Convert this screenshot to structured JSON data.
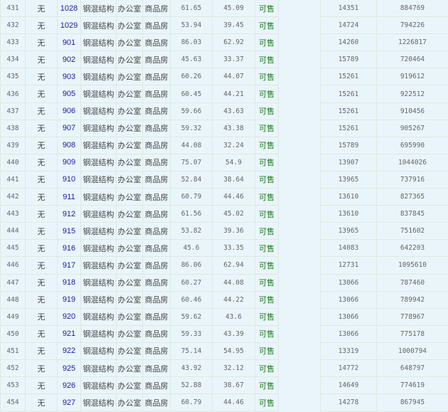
{
  "table": {
    "rows": [
      {
        "no": "431",
        "layer": "无",
        "room": "1028",
        "structure": "钢混结构",
        "usage": "办公室",
        "type": "商品房",
        "build_area": "61.65",
        "inner_area": "45.09",
        "status": "可售",
        "unit_price": "14351",
        "total_price": "884769"
      },
      {
        "no": "432",
        "layer": "无",
        "room": "1029",
        "structure": "钢混结构",
        "usage": "办公室",
        "type": "商品房",
        "build_area": "53.94",
        "inner_area": "39.45",
        "status": "可售",
        "unit_price": "14724",
        "total_price": "794226"
      },
      {
        "no": "433",
        "layer": "无",
        "room": "901",
        "structure": "钢混结构",
        "usage": "办公室",
        "type": "商品房",
        "build_area": "86.03",
        "inner_area": "62.92",
        "status": "可售",
        "unit_price": "14260",
        "total_price": "1226817"
      },
      {
        "no": "434",
        "layer": "无",
        "room": "902",
        "structure": "钢混结构",
        "usage": "办公室",
        "type": "商品房",
        "build_area": "45.63",
        "inner_area": "33.37",
        "status": "可售",
        "unit_price": "15789",
        "total_price": "720464"
      },
      {
        "no": "435",
        "layer": "无",
        "room": "903",
        "structure": "钢混结构",
        "usage": "办公室",
        "type": "商品房",
        "build_area": "60.26",
        "inner_area": "44.07",
        "status": "可售",
        "unit_price": "15261",
        "total_price": "919612"
      },
      {
        "no": "436",
        "layer": "无",
        "room": "905",
        "structure": "钢混结构",
        "usage": "办公室",
        "type": "商品房",
        "build_area": "60.45",
        "inner_area": "44.21",
        "status": "可售",
        "unit_price": "15261",
        "total_price": "922512"
      },
      {
        "no": "437",
        "layer": "无",
        "room": "906",
        "structure": "钢混结构",
        "usage": "办公室",
        "type": "商品房",
        "build_area": "59.66",
        "inner_area": "43.63",
        "status": "可售",
        "unit_price": "15261",
        "total_price": "910456"
      },
      {
        "no": "438",
        "layer": "无",
        "room": "907",
        "structure": "钢混结构",
        "usage": "办公室",
        "type": "商品房",
        "build_area": "59.32",
        "inner_area": "43.38",
        "status": "可售",
        "unit_price": "15261",
        "total_price": "905267"
      },
      {
        "no": "439",
        "layer": "无",
        "room": "908",
        "structure": "钢混结构",
        "usage": "办公室",
        "type": "商品房",
        "build_area": "44.08",
        "inner_area": "32.24",
        "status": "可售",
        "unit_price": "15789",
        "total_price": "695990"
      },
      {
        "no": "440",
        "layer": "无",
        "room": "909",
        "structure": "钢混结构",
        "usage": "办公室",
        "type": "商品房",
        "build_area": "75.07",
        "inner_area": "54.9",
        "status": "可售",
        "unit_price": "13907",
        "total_price": "1044026"
      },
      {
        "no": "441",
        "layer": "无",
        "room": "910",
        "structure": "钢混结构",
        "usage": "办公室",
        "type": "商品房",
        "build_area": "52.84",
        "inner_area": "38.64",
        "status": "可售",
        "unit_price": "13965",
        "total_price": "737916"
      },
      {
        "no": "442",
        "layer": "无",
        "room": "911",
        "structure": "钢混结构",
        "usage": "办公室",
        "type": "商品房",
        "build_area": "60.79",
        "inner_area": "44.46",
        "status": "可售",
        "unit_price": "13610",
        "total_price": "827365"
      },
      {
        "no": "443",
        "layer": "无",
        "room": "912",
        "structure": "钢混结构",
        "usage": "办公室",
        "type": "商品房",
        "build_area": "61.56",
        "inner_area": "45.02",
        "status": "可售",
        "unit_price": "13610",
        "total_price": "837845"
      },
      {
        "no": "444",
        "layer": "无",
        "room": "915",
        "structure": "钢混结构",
        "usage": "办公室",
        "type": "商品房",
        "build_area": "53.82",
        "inner_area": "39.36",
        "status": "可售",
        "unit_price": "13965",
        "total_price": "751602"
      },
      {
        "no": "445",
        "layer": "无",
        "room": "916",
        "structure": "钢混结构",
        "usage": "办公室",
        "type": "商品房",
        "build_area": "45.6",
        "inner_area": "33.35",
        "status": "可售",
        "unit_price": "14083",
        "total_price": "642203"
      },
      {
        "no": "446",
        "layer": "无",
        "room": "917",
        "structure": "钢混结构",
        "usage": "办公室",
        "type": "商品房",
        "build_area": "86.06",
        "inner_area": "62.94",
        "status": "可售",
        "unit_price": "12731",
        "total_price": "1095610"
      },
      {
        "no": "447",
        "layer": "无",
        "room": "918",
        "structure": "钢混结构",
        "usage": "办公室",
        "type": "商品房",
        "build_area": "60.27",
        "inner_area": "44.08",
        "status": "可售",
        "unit_price": "13066",
        "total_price": "787460"
      },
      {
        "no": "448",
        "layer": "无",
        "room": "919",
        "structure": "钢混结构",
        "usage": "办公室",
        "type": "商品房",
        "build_area": "60.46",
        "inner_area": "44.22",
        "status": "可售",
        "unit_price": "13066",
        "total_price": "789942"
      },
      {
        "no": "449",
        "layer": "无",
        "room": "920",
        "structure": "钢混结构",
        "usage": "办公室",
        "type": "商品房",
        "build_area": "59.62",
        "inner_area": "43.6",
        "status": "可售",
        "unit_price": "13066",
        "total_price": "778967"
      },
      {
        "no": "450",
        "layer": "无",
        "room": "921",
        "structure": "钢混结构",
        "usage": "办公室",
        "type": "商品房",
        "build_area": "59.33",
        "inner_area": "43.39",
        "status": "可售",
        "unit_price": "13066",
        "total_price": "775178"
      },
      {
        "no": "451",
        "layer": "无",
        "room": "922",
        "structure": "钢混结构",
        "usage": "办公室",
        "type": "商品房",
        "build_area": "75.14",
        "inner_area": "54.95",
        "status": "可售",
        "unit_price": "13319",
        "total_price": "1000794"
      },
      {
        "no": "452",
        "layer": "无",
        "room": "925",
        "structure": "钢混结构",
        "usage": "办公室",
        "type": "商品房",
        "build_area": "43.92",
        "inner_area": "32.12",
        "status": "可售",
        "unit_price": "14772",
        "total_price": "648797"
      },
      {
        "no": "453",
        "layer": "无",
        "room": "926",
        "structure": "钢混结构",
        "usage": "办公室",
        "type": "商品房",
        "build_area": "52.88",
        "inner_area": "38.67",
        "status": "可售",
        "unit_price": "14649",
        "total_price": "774619"
      },
      {
        "no": "454",
        "layer": "无",
        "room": "927",
        "structure": "钢混结构",
        "usage": "办公室",
        "type": "商品房",
        "build_area": "60.79",
        "inner_area": "44.46",
        "status": "可售",
        "unit_price": "14278",
        "total_price": "867945"
      }
    ]
  },
  "colors": {
    "background": "#eaf5fb",
    "link": "#1a1aa8",
    "status_available": "#1d7d1d",
    "grid": "#dbe9e0"
  }
}
